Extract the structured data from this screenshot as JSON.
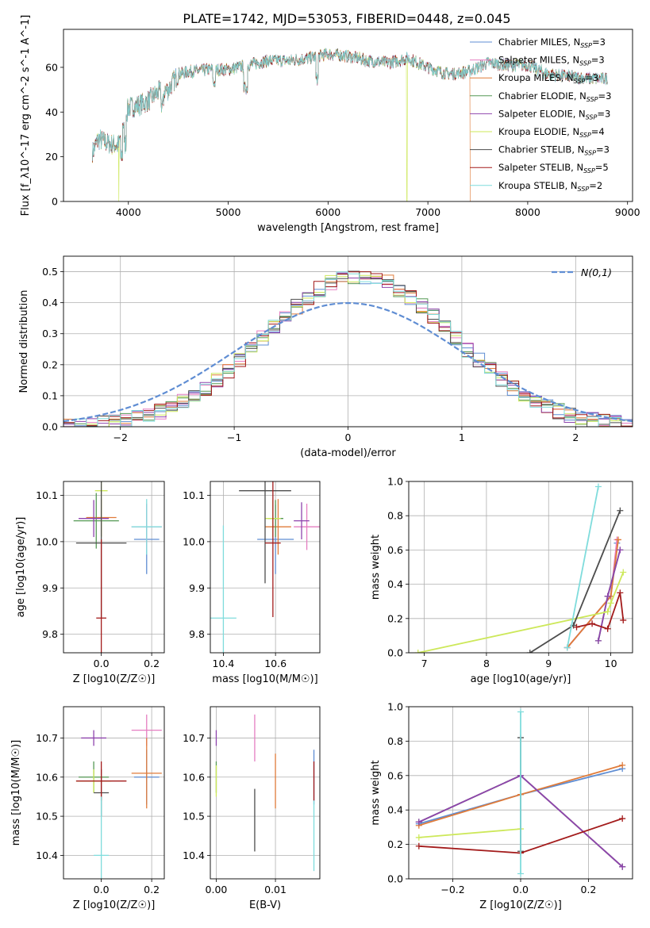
{
  "title": "PLATE=1742, MJD=53053, FIBERID=0448, z=0.045",
  "colors": {
    "chabrier_miles": "#5f8dd3",
    "salpeter_miles": "#e57ec1",
    "kroupa_miles": "#e07b39",
    "chabrier_elodie": "#559955",
    "salpeter_elodie": "#8e44ad",
    "kroupa_elodie": "#cde85a",
    "chabrier_stelib": "#4d4d4d",
    "salpeter_stelib": "#a31b1b",
    "kroupa_stelib": "#7fdcdc",
    "normal": "#5f8dd3"
  },
  "chart_data": [
    {
      "type": "line",
      "name": "spectrum",
      "xlabel": "wavelength [Angstrom, rest frame]",
      "ylabel": "Flux [f_λ10^-17 erg cm^-2 s^-1 A^-1]",
      "xlim": [
        3350,
        9050
      ],
      "ylim": [
        0,
        77
      ],
      "xticks": [
        4000,
        5000,
        6000,
        7000,
        8000,
        9000
      ],
      "yticks": [
        0,
        20,
        40,
        60
      ],
      "grid": false,
      "legend": "top-right",
      "legend_entries": [
        "Chabrier MILES, N_SSP=3",
        "Salpeter MILES, N_SSP=3",
        "Kroupa MILES, N_SSP=3",
        "Chabrier ELODIE, N_SSP=3",
        "Salpeter ELODIE, N_SSP=3",
        "Kroupa ELODIE, N_SSP=4",
        "Chabrier STELIB, N_SSP=3",
        "Salpeter STELIB, N_SSP=5",
        "Kroupa STELIB, N_SSP=2"
      ],
      "continuum_x": [
        3640,
        3700,
        3800,
        3900,
        3950,
        4000,
        4100,
        4200,
        4300,
        4400,
        4500,
        4600,
        4800,
        5000,
        5200,
        5400,
        5600,
        5800,
        6000,
        6200,
        6400,
        6600,
        6800,
        7000,
        7200,
        7400,
        7600,
        7800,
        8000,
        8200,
        8400,
        8600,
        8800
      ],
      "continuum_y": [
        22,
        28,
        26,
        25,
        35,
        42,
        43,
        45,
        49,
        50,
        57,
        58,
        59,
        59,
        61,
        63,
        63,
        64,
        66,
        65,
        63,
        62,
        64,
        60,
        57,
        58,
        62,
        61,
        61,
        57,
        56,
        55,
        55
      ]
    },
    {
      "type": "step",
      "name": "residuals",
      "xlabel": "(data-model)/error",
      "ylabel": "Normed distribution",
      "xlim": [
        -2.5,
        2.5
      ],
      "ylim": [
        0,
        0.55
      ],
      "xticks": [
        -2,
        -1,
        0,
        1,
        2
      ],
      "yticks": [
        0.0,
        0.1,
        0.2,
        0.3,
        0.4,
        0.5
      ],
      "grid": true,
      "legend": "top-right",
      "legend_entries": [
        "N(0,1)"
      ],
      "bin_width": 0.1
    },
    {
      "type": "scatter",
      "name": "age_vs_Z",
      "xlabel": "Z [log10(Z/Z☉)]",
      "ylabel": "age  [log10(age/yr)]",
      "xlim": [
        -0.15,
        0.25
      ],
      "ylim": [
        9.76,
        10.13
      ],
      "xticks": [
        0.0,
        0.2
      ],
      "yticks": [
        9.8,
        9.9,
        10.0,
        10.1
      ],
      "grid": true,
      "points": [
        {
          "x": 0.18,
          "y": 10.005,
          "xerr": 0.05,
          "yerr": 0.075
        },
        {
          "x": 0.18,
          "y": 10.032,
          "xerr": 0.06,
          "yerr": 0.05
        },
        {
          "x": 0.0,
          "y": 10.052,
          "xerr": 0.06,
          "yerr": 0.04
        },
        {
          "x": -0.02,
          "y": 10.045,
          "xerr": 0.09,
          "yerr": 0.06
        },
        {
          "x": -0.03,
          "y": 10.05,
          "xerr": 0.06,
          "yerr": 0.04
        },
        {
          "x": 0.0,
          "y": 10.11,
          "xerr": 0.025,
          "yerr": 0.1
        },
        {
          "x": 0.0,
          "y": 9.997,
          "xerr": 0.1,
          "yerr": 0.16
        },
        {
          "x": 0.0,
          "y": 9.835,
          "xerr": 0.02,
          "yerr": 0.17
        },
        {
          "x": 0.18,
          "y": 10.032,
          "xerr": 0.06,
          "yerr": 0.06
        }
      ]
    },
    {
      "type": "scatter",
      "name": "age_vs_mass",
      "xlabel": "mass [log10(M/M☉)]",
      "ylabel": "",
      "xlim": [
        10.35,
        10.77
      ],
      "ylim": [
        9.76,
        10.13
      ],
      "xticks": [
        10.4,
        10.6
      ],
      "yticks": [
        9.8,
        9.9,
        10.0,
        10.1
      ],
      "grid": true,
      "points": [
        {
          "x": 10.6,
          "y": 10.005,
          "xerr": 0.07,
          "yerr": 0.075
        },
        {
          "x": 10.72,
          "y": 10.032,
          "xerr": 0.05,
          "yerr": 0.05
        },
        {
          "x": 10.61,
          "y": 10.032,
          "xerr": 0.05,
          "yerr": 0.06
        },
        {
          "x": 10.6,
          "y": 10.05,
          "xerr": 0.03,
          "yerr": 0.04
        },
        {
          "x": 10.7,
          "y": 10.045,
          "xerr": 0.03,
          "yerr": 0.04
        },
        {
          "x": 10.59,
          "y": 10.05,
          "xerr": 0.03,
          "yerr": 0.04
        },
        {
          "x": 10.56,
          "y": 10.11,
          "xerr": 0.1,
          "yerr": 0.2
        },
        {
          "x": 10.59,
          "y": 9.997,
          "xerr": 0.03,
          "yerr": 0.16
        },
        {
          "x": 10.4,
          "y": 9.835,
          "xerr": 0.05,
          "yerr": 0.2
        }
      ]
    },
    {
      "type": "line",
      "name": "mass_weight_vs_age",
      "xlabel": "age  [log10(age/yr)]",
      "ylabel": "mass weight",
      "xlim": [
        6.75,
        10.35
      ],
      "ylim": [
        0,
        1
      ],
      "xticks": [
        7,
        8,
        9,
        10
      ],
      "yticks": [
        0.0,
        0.2,
        0.4,
        0.6,
        0.8,
        1.0
      ],
      "grid": true,
      "series": [
        {
          "x": [
            9.3,
            10.0,
            10.1
          ],
          "y": [
            0.03,
            0.33,
            0.64
          ]
        },
        {
          "x": [
            9.3,
            10.0,
            10.1
          ],
          "y": [
            0.03,
            0.33,
            0.66
          ]
        },
        {
          "x": [
            9.3,
            10.0,
            10.12
          ],
          "y": [
            0.03,
            0.33,
            0.66
          ]
        },
        {
          "x": [
            9.8,
            9.95,
            10.15
          ],
          "y": [
            0.07,
            0.33,
            0.6
          ]
        },
        {
          "x": [
            9.8,
            9.95,
            10.15
          ],
          "y": [
            0.07,
            0.33,
            0.6
          ]
        },
        {
          "x": [
            6.9,
            9.95,
            10.0,
            10.2
          ],
          "y": [
            0.0,
            0.24,
            0.29,
            0.47
          ]
        },
        {
          "x": [
            8.7,
            9.4,
            10.15
          ],
          "y": [
            0.0,
            0.16,
            0.83
          ]
        },
        {
          "x": [
            9.45,
            9.7,
            9.95,
            10.15,
            10.2
          ],
          "y": [
            0.15,
            0.17,
            0.14,
            0.35,
            0.19
          ]
        },
        {
          "x": [
            9.3,
            9.8
          ],
          "y": [
            0.03,
            0.97
          ]
        }
      ]
    },
    {
      "type": "scatter",
      "name": "mass_vs_Z",
      "xlabel": "Z [log10(Z/Z☉)]",
      "ylabel": "mass [log10(M/M☉)]",
      "xlim": [
        -0.15,
        0.25
      ],
      "ylim": [
        10.34,
        10.78
      ],
      "xticks": [
        0.0,
        0.2
      ],
      "yticks": [
        10.4,
        10.5,
        10.6,
        10.7
      ],
      "grid": true,
      "points": [
        {
          "x": 0.18,
          "y": 10.6,
          "xerr": 0.05,
          "yerr": 0.07
        },
        {
          "x": 0.18,
          "y": 10.72,
          "xerr": 0.06,
          "yerr": 0.04
        },
        {
          "x": 0.18,
          "y": 10.61,
          "xerr": 0.06,
          "yerr": 0.09
        },
        {
          "x": -0.03,
          "y": 10.6,
          "xerr": 0.06,
          "yerr": 0.04
        },
        {
          "x": -0.03,
          "y": 10.7,
          "xerr": 0.05,
          "yerr": 0.02
        },
        {
          "x": -0.03,
          "y": 10.59,
          "xerr": 0.07,
          "yerr": 0.03
        },
        {
          "x": 0.0,
          "y": 10.56,
          "xerr": 0.03,
          "yerr": 0.06
        },
        {
          "x": 0.0,
          "y": 10.59,
          "xerr": 0.1,
          "yerr": 0.05
        },
        {
          "x": 0.0,
          "y": 10.4,
          "xerr": 0.03,
          "yerr": 0.15
        }
      ]
    },
    {
      "type": "scatter",
      "name": "mass_vs_EBV",
      "xlabel": "E(B-V)",
      "ylabel": "",
      "xlim": [
        -0.001,
        0.0175
      ],
      "ylim": [
        10.34,
        10.78
      ],
      "xticks": [
        0.0,
        0.01
      ],
      "yticks": [
        10.4,
        10.5,
        10.6,
        10.7
      ],
      "grid": true,
      "points": [
        {
          "x": 0.0165,
          "y": 10.6,
          "yerr": 0.07
        },
        {
          "x": 0.0065,
          "y": 10.7,
          "yerr": 0.06
        },
        {
          "x": 0.01,
          "y": 10.59,
          "yerr": 0.07
        },
        {
          "x": 0.0,
          "y": 10.6,
          "yerr": 0.04
        },
        {
          "x": 0.0,
          "y": 10.7,
          "yerr": 0.02
        },
        {
          "x": 0.0,
          "y": 10.59,
          "yerr": 0.04
        },
        {
          "x": 0.0065,
          "y": 10.49,
          "yerr": 0.08
        },
        {
          "x": 0.0165,
          "y": 10.59,
          "yerr": 0.05
        },
        {
          "x": 0.0165,
          "y": 10.45,
          "yerr": 0.09
        }
      ]
    },
    {
      "type": "line",
      "name": "mass_weight_vs_Z",
      "xlabel": "Z [log10(Z/Z☉)]",
      "ylabel": "mass weight",
      "xlim": [
        -0.33,
        0.33
      ],
      "ylim": [
        0,
        1
      ],
      "xticks": [
        -0.2,
        0.0,
        0.2
      ],
      "yticks": [
        0.0,
        0.2,
        0.4,
        0.6,
        0.8,
        1.0
      ],
      "grid": true,
      "series": [
        {
          "x": [
            -0.3,
            0.0,
            0.3
          ],
          "y": [
            0.32,
            0.49,
            0.64
          ]
        },
        {
          "x": [
            -0.3,
            0.0,
            0.3
          ],
          "y": [
            0.33,
            0.6,
            0.07
          ]
        },
        {
          "x": [
            -0.3,
            0.0,
            0.3
          ],
          "y": [
            0.31,
            0.49,
            0.66
          ]
        },
        {
          "x": [
            -0.3,
            0.0,
            0.3
          ],
          "y": [
            0.33,
            0.6,
            0.07
          ]
        },
        {
          "x": [
            -0.3,
            0.0,
            0.3
          ],
          "y": [
            0.33,
            0.6,
            0.07
          ]
        },
        {
          "x": [
            -0.3,
            0.0
          ],
          "y": [
            0.24,
            0.29
          ]
        },
        {
          "x": [
            0.0,
            0.0
          ],
          "y": [
            0.16,
            0.82
          ]
        },
        {
          "x": [
            -0.3,
            0.0,
            0.3
          ],
          "y": [
            0.19,
            0.15,
            0.35
          ]
        },
        {
          "x": [
            0.0,
            0.0
          ],
          "y": [
            0.03,
            0.97
          ]
        }
      ]
    }
  ]
}
